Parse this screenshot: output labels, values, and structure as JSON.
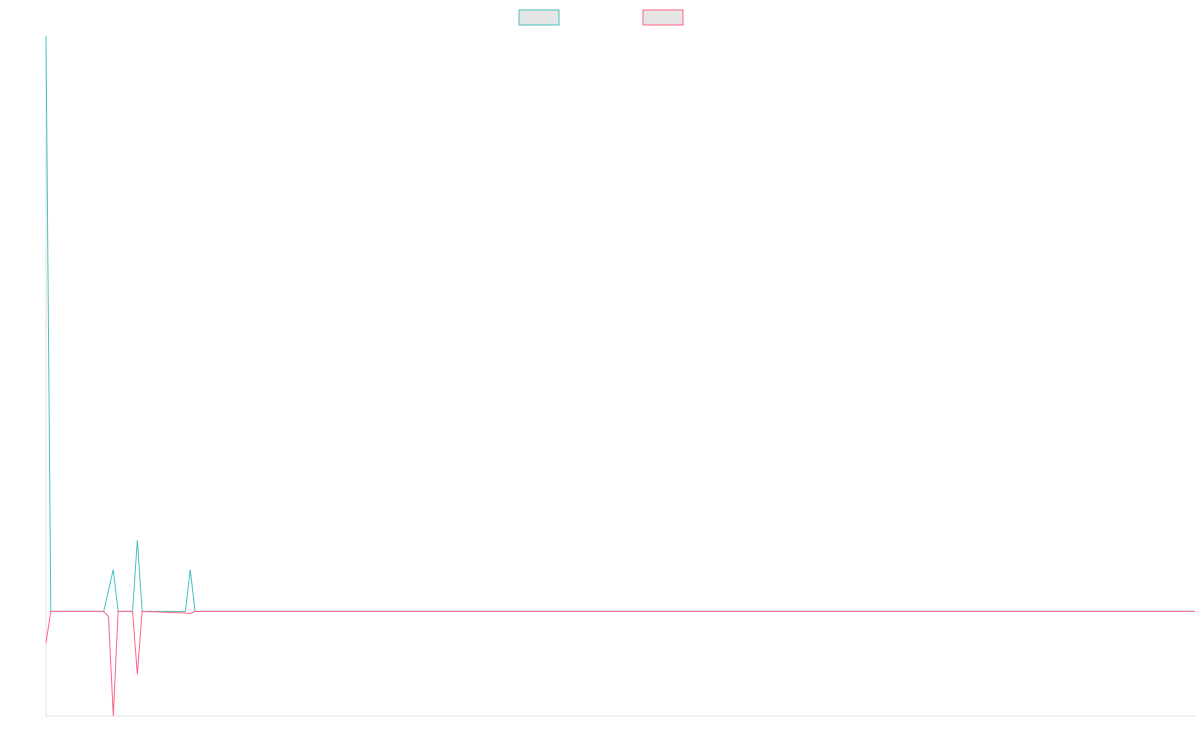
{
  "chart_data": {
    "type": "line",
    "x": [
      0,
      1,
      12,
      13,
      14,
      15,
      18,
      19,
      20,
      29,
      30,
      31,
      239
    ],
    "series": [
      {
        "color": "#4bc0c0",
        "values": [
          110,
          0,
          0,
          4,
          8,
          0,
          0,
          13.6,
          0,
          0,
          8,
          0,
          0
        ]
      },
      {
        "color": "#ff6384",
        "values": [
          -6,
          0,
          0,
          -1,
          -20,
          0,
          0,
          -12,
          0,
          -0.3,
          -0.4,
          0,
          0
        ]
      }
    ],
    "xlim": [
      0,
      239
    ],
    "ylim": [
      -20,
      110
    ],
    "grid": false,
    "legend": "top"
  }
}
